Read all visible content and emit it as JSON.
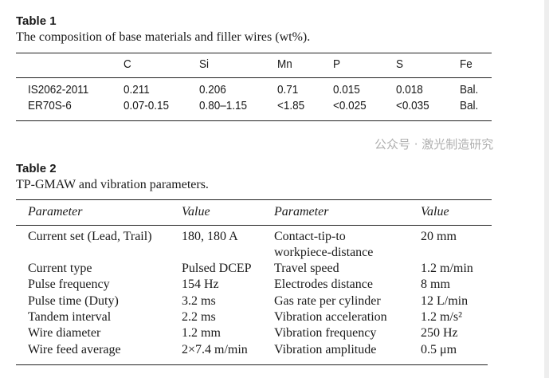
{
  "table1": {
    "title": "Table 1",
    "caption": "The composition of base materials and filler wires (wt%).",
    "headers": [
      "",
      "C",
      "Si",
      "Mn",
      "P",
      "S",
      "Fe"
    ],
    "rows": [
      [
        "IS2062-2011",
        "0.211",
        "0.206",
        "0.71",
        "0.015",
        "0.018",
        "Bal."
      ],
      [
        "ER70S-6",
        "0.07-0.15",
        "0.80–1.15",
        "<1.85",
        "<0.025",
        "<0.035",
        "Bal."
      ]
    ]
  },
  "table2": {
    "title": "Table 2",
    "caption": "TP-GMAW and vibration parameters.",
    "headers": [
      "Parameter",
      "Value",
      "Parameter",
      "Value"
    ],
    "rows": [
      [
        "Current set (Lead, Trail)",
        "180, 180 A",
        "Contact-tip-to",
        "20 mm"
      ],
      [
        "",
        "",
        "workpiece-distance",
        ""
      ],
      [
        "Current type",
        "Pulsed DCEP",
        "Travel speed",
        "1.2 m/min"
      ],
      [
        "Pulse frequency",
        "154 Hz",
        "Electrodes distance",
        "8 mm"
      ],
      [
        "Pulse time (Duty)",
        "3.2 ms",
        "Gas rate per cylinder",
        "12 L/min"
      ],
      [
        "Tandem interval",
        "2.2 ms",
        "Vibration acceleration",
        "1.2 m/s²"
      ],
      [
        "Wire diameter",
        "1.2 mm",
        "Vibration frequency",
        "250 Hz"
      ],
      [
        "Wire feed average",
        "2×7.4 m/min",
        "Vibration amplitude",
        "0.5 μm"
      ]
    ]
  },
  "watermark": "公众号 · 激光制造研究"
}
